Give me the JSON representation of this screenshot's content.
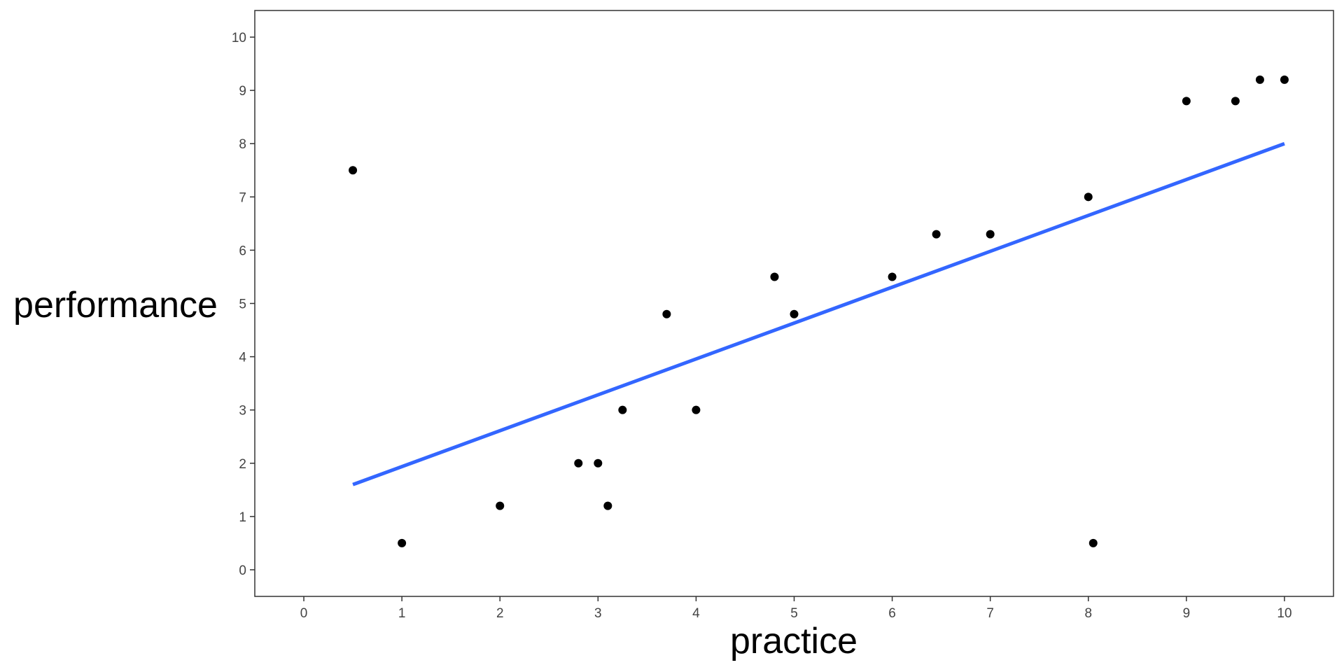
{
  "chart_data": {
    "type": "scatter",
    "title": "",
    "xlabel": "practice",
    "ylabel": "performance",
    "xlim": [
      -0.5,
      10.5
    ],
    "ylim": [
      -0.5,
      10.5
    ],
    "x_ticks": [
      0,
      1,
      2,
      3,
      4,
      5,
      6,
      7,
      8,
      9,
      10
    ],
    "y_ticks": [
      0,
      1,
      2,
      3,
      4,
      5,
      6,
      7,
      8,
      9,
      10
    ],
    "grid": false,
    "points": [
      {
        "x": 0.5,
        "y": 7.5
      },
      {
        "x": 1.0,
        "y": 0.5
      },
      {
        "x": 2.0,
        "y": 1.2
      },
      {
        "x": 2.8,
        "y": 2.0
      },
      {
        "x": 3.0,
        "y": 2.0
      },
      {
        "x": 3.1,
        "y": 1.2
      },
      {
        "x": 3.25,
        "y": 3.0
      },
      {
        "x": 3.7,
        "y": 4.8
      },
      {
        "x": 4.0,
        "y": 3.0
      },
      {
        "x": 4.8,
        "y": 5.5
      },
      {
        "x": 5.0,
        "y": 4.8
      },
      {
        "x": 6.0,
        "y": 5.5
      },
      {
        "x": 6.45,
        "y": 6.3
      },
      {
        "x": 7.0,
        "y": 6.3
      },
      {
        "x": 8.0,
        "y": 7.0
      },
      {
        "x": 8.05,
        "y": 0.5
      },
      {
        "x": 9.0,
        "y": 8.8
      },
      {
        "x": 9.5,
        "y": 8.8
      },
      {
        "x": 9.75,
        "y": 9.2
      },
      {
        "x": 10.0,
        "y": 9.2
      }
    ],
    "trend_line": {
      "x": [
        0.5,
        10.0
      ],
      "y": [
        1.6,
        8.0
      ]
    },
    "colors": {
      "points": "#000000",
      "trend_line": "#3366ff",
      "axes": "#333333"
    }
  }
}
